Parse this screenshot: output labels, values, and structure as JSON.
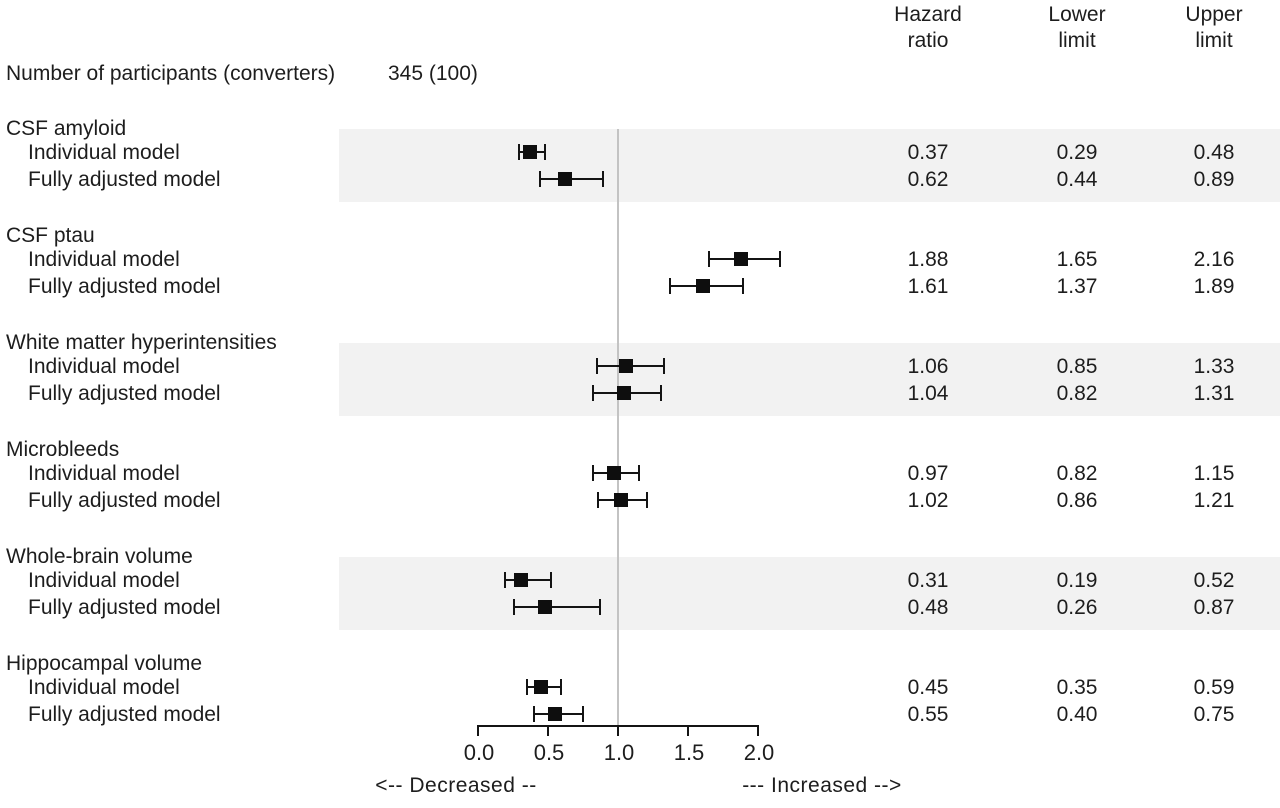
{
  "header": {
    "cols": [
      {
        "line1": "Hazard",
        "line2": "ratio"
      },
      {
        "line1": "Lower",
        "line2": "limit"
      },
      {
        "line1": "Upper",
        "line2": "limit"
      }
    ]
  },
  "participants": {
    "label": "Number of participants (converters)",
    "value": "345 (100)"
  },
  "groups": [
    {
      "label": "CSF amyloid",
      "shaded": true,
      "rows": [
        {
          "model": "Individual model",
          "hr": "0.37",
          "lower": "0.29",
          "upper": "0.48"
        },
        {
          "model": "Fully adjusted model",
          "hr": "0.62",
          "lower": "0.44",
          "upper": "0.89"
        }
      ]
    },
    {
      "label": "CSF ptau",
      "shaded": false,
      "rows": [
        {
          "model": "Individual model",
          "hr": "1.88",
          "lower": "1.65",
          "upper": "2.16"
        },
        {
          "model": "Fully adjusted model",
          "hr": "1.61",
          "lower": "1.37",
          "upper": "1.89"
        }
      ]
    },
    {
      "label": "White matter hyperintensities",
      "shaded": true,
      "rows": [
        {
          "model": "Individual model",
          "hr": "1.06",
          "lower": "0.85",
          "upper": "1.33"
        },
        {
          "model": "Fully adjusted model",
          "hr": "1.04",
          "lower": "0.82",
          "upper": "1.31"
        }
      ]
    },
    {
      "label": "Microbleeds",
      "shaded": false,
      "rows": [
        {
          "model": "Individual model",
          "hr": "0.97",
          "lower": "0.82",
          "upper": "1.15"
        },
        {
          "model": "Fully adjusted model",
          "hr": "1.02",
          "lower": "0.86",
          "upper": "1.21"
        }
      ]
    },
    {
      "label": "Whole-brain volume",
      "shaded": true,
      "rows": [
        {
          "model": "Individual model",
          "hr": "0.31",
          "lower": "0.19",
          "upper": "0.52"
        },
        {
          "model": "Fully adjusted model",
          "hr": "0.48",
          "lower": "0.26",
          "upper": "0.87"
        }
      ]
    },
    {
      "label": "Hippocampal volume",
      "shaded": false,
      "rows": [
        {
          "model": "Individual model",
          "hr": "0.45",
          "lower": "0.35",
          "upper": "0.59"
        },
        {
          "model": "Fully adjusted model",
          "hr": "0.55",
          "lower": "0.40",
          "upper": "0.75"
        }
      ]
    }
  ],
  "axis": {
    "ticks": [
      "0.0",
      "0.5",
      "1.0",
      "1.5",
      "2.0"
    ],
    "min": 0,
    "max": 2,
    "reference_line": 1.0
  },
  "legend": {
    "decreased": "<-- Decreased --",
    "increased": "--- Increased -->"
  },
  "colors": {
    "marker": "#0e0e0e",
    "band": "#f2f2f2",
    "refline": "#c3c3c3",
    "text": "#1d1d1d",
    "axis": "#141414"
  },
  "chart_data": {
    "type": "forest",
    "title": "",
    "xlabel": "",
    "x_axis_ticks": [
      0.0,
      0.5,
      1.0,
      1.5,
      2.0
    ],
    "x_range": [
      0,
      2
    ],
    "reference_line": 1.0,
    "column_headers": [
      "Hazard ratio",
      "Lower limit",
      "Upper limit"
    ],
    "participants_label": "Number of participants (converters)",
    "participants_value": "345 (100)",
    "direction_labels": {
      "left": "Decreased",
      "right": "Increased"
    },
    "shaded_groups": [
      "CSF amyloid",
      "White matter hyperintensities",
      "Whole-brain volume"
    ],
    "series": [
      {
        "group": "CSF amyloid",
        "model": "Individual model",
        "hazard_ratio": 0.37,
        "lower": 0.29,
        "upper": 0.48
      },
      {
        "group": "CSF amyloid",
        "model": "Fully adjusted model",
        "hazard_ratio": 0.62,
        "lower": 0.44,
        "upper": 0.89
      },
      {
        "group": "CSF ptau",
        "model": "Individual model",
        "hazard_ratio": 1.88,
        "lower": 1.65,
        "upper": 2.16
      },
      {
        "group": "CSF ptau",
        "model": "Fully adjusted model",
        "hazard_ratio": 1.61,
        "lower": 1.37,
        "upper": 1.89
      },
      {
        "group": "White matter hyperintensities",
        "model": "Individual model",
        "hazard_ratio": 1.06,
        "lower": 0.85,
        "upper": 1.33
      },
      {
        "group": "White matter hyperintensities",
        "model": "Fully adjusted model",
        "hazard_ratio": 1.04,
        "lower": 0.82,
        "upper": 1.31
      },
      {
        "group": "Microbleeds",
        "model": "Individual model",
        "hazard_ratio": 0.97,
        "lower": 0.82,
        "upper": 1.15
      },
      {
        "group": "Microbleeds",
        "model": "Fully adjusted model",
        "hazard_ratio": 1.02,
        "lower": 0.86,
        "upper": 1.21
      },
      {
        "group": "Whole-brain volume",
        "model": "Individual model",
        "hazard_ratio": 0.31,
        "lower": 0.19,
        "upper": 0.52
      },
      {
        "group": "Whole-brain volume",
        "model": "Fully adjusted model",
        "hazard_ratio": 0.48,
        "lower": 0.26,
        "upper": 0.87
      },
      {
        "group": "Hippocampal volume",
        "model": "Individual model",
        "hazard_ratio": 0.45,
        "lower": 0.35,
        "upper": 0.59
      },
      {
        "group": "Hippocampal volume",
        "model": "Fully adjusted model",
        "hazard_ratio": 0.55,
        "lower": 0.4,
        "upper": 0.75
      }
    ]
  }
}
